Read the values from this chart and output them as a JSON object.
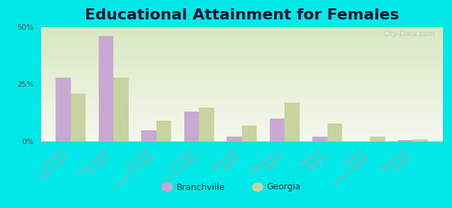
{
  "title": "Educational Attainment for Females",
  "categories": [
    "Less than\nhigh school",
    "High school\nor equiv.",
    "Less than\n1 year of college",
    "1 or more\nyears of college",
    "Associate\ndegree",
    "Bachelor's\ndegree",
    "Master's\ndegree",
    "Profess.\nschool degree",
    "Doctorate\ndegree"
  ],
  "branchville": [
    28,
    46,
    5,
    13,
    2,
    10,
    2,
    0,
    0.5
  ],
  "georgia": [
    21,
    28,
    9,
    15,
    7,
    17,
    8,
    2,
    1
  ],
  "branchville_color": "#c9a8d4",
  "georgia_color": "#c8d4a0",
  "background_outer": "#00e8e8",
  "background_inner_top": "#f5f8ee",
  "background_inner_bottom": "#d8e8c0",
  "ylim": [
    0,
    50
  ],
  "yticks": [
    0,
    25,
    50
  ],
  "ytick_labels": [
    "0%",
    "25%",
    "50%"
  ],
  "title_fontsize": 16,
  "legend_branchville": "Branchville",
  "legend_georgia": "Georgia"
}
